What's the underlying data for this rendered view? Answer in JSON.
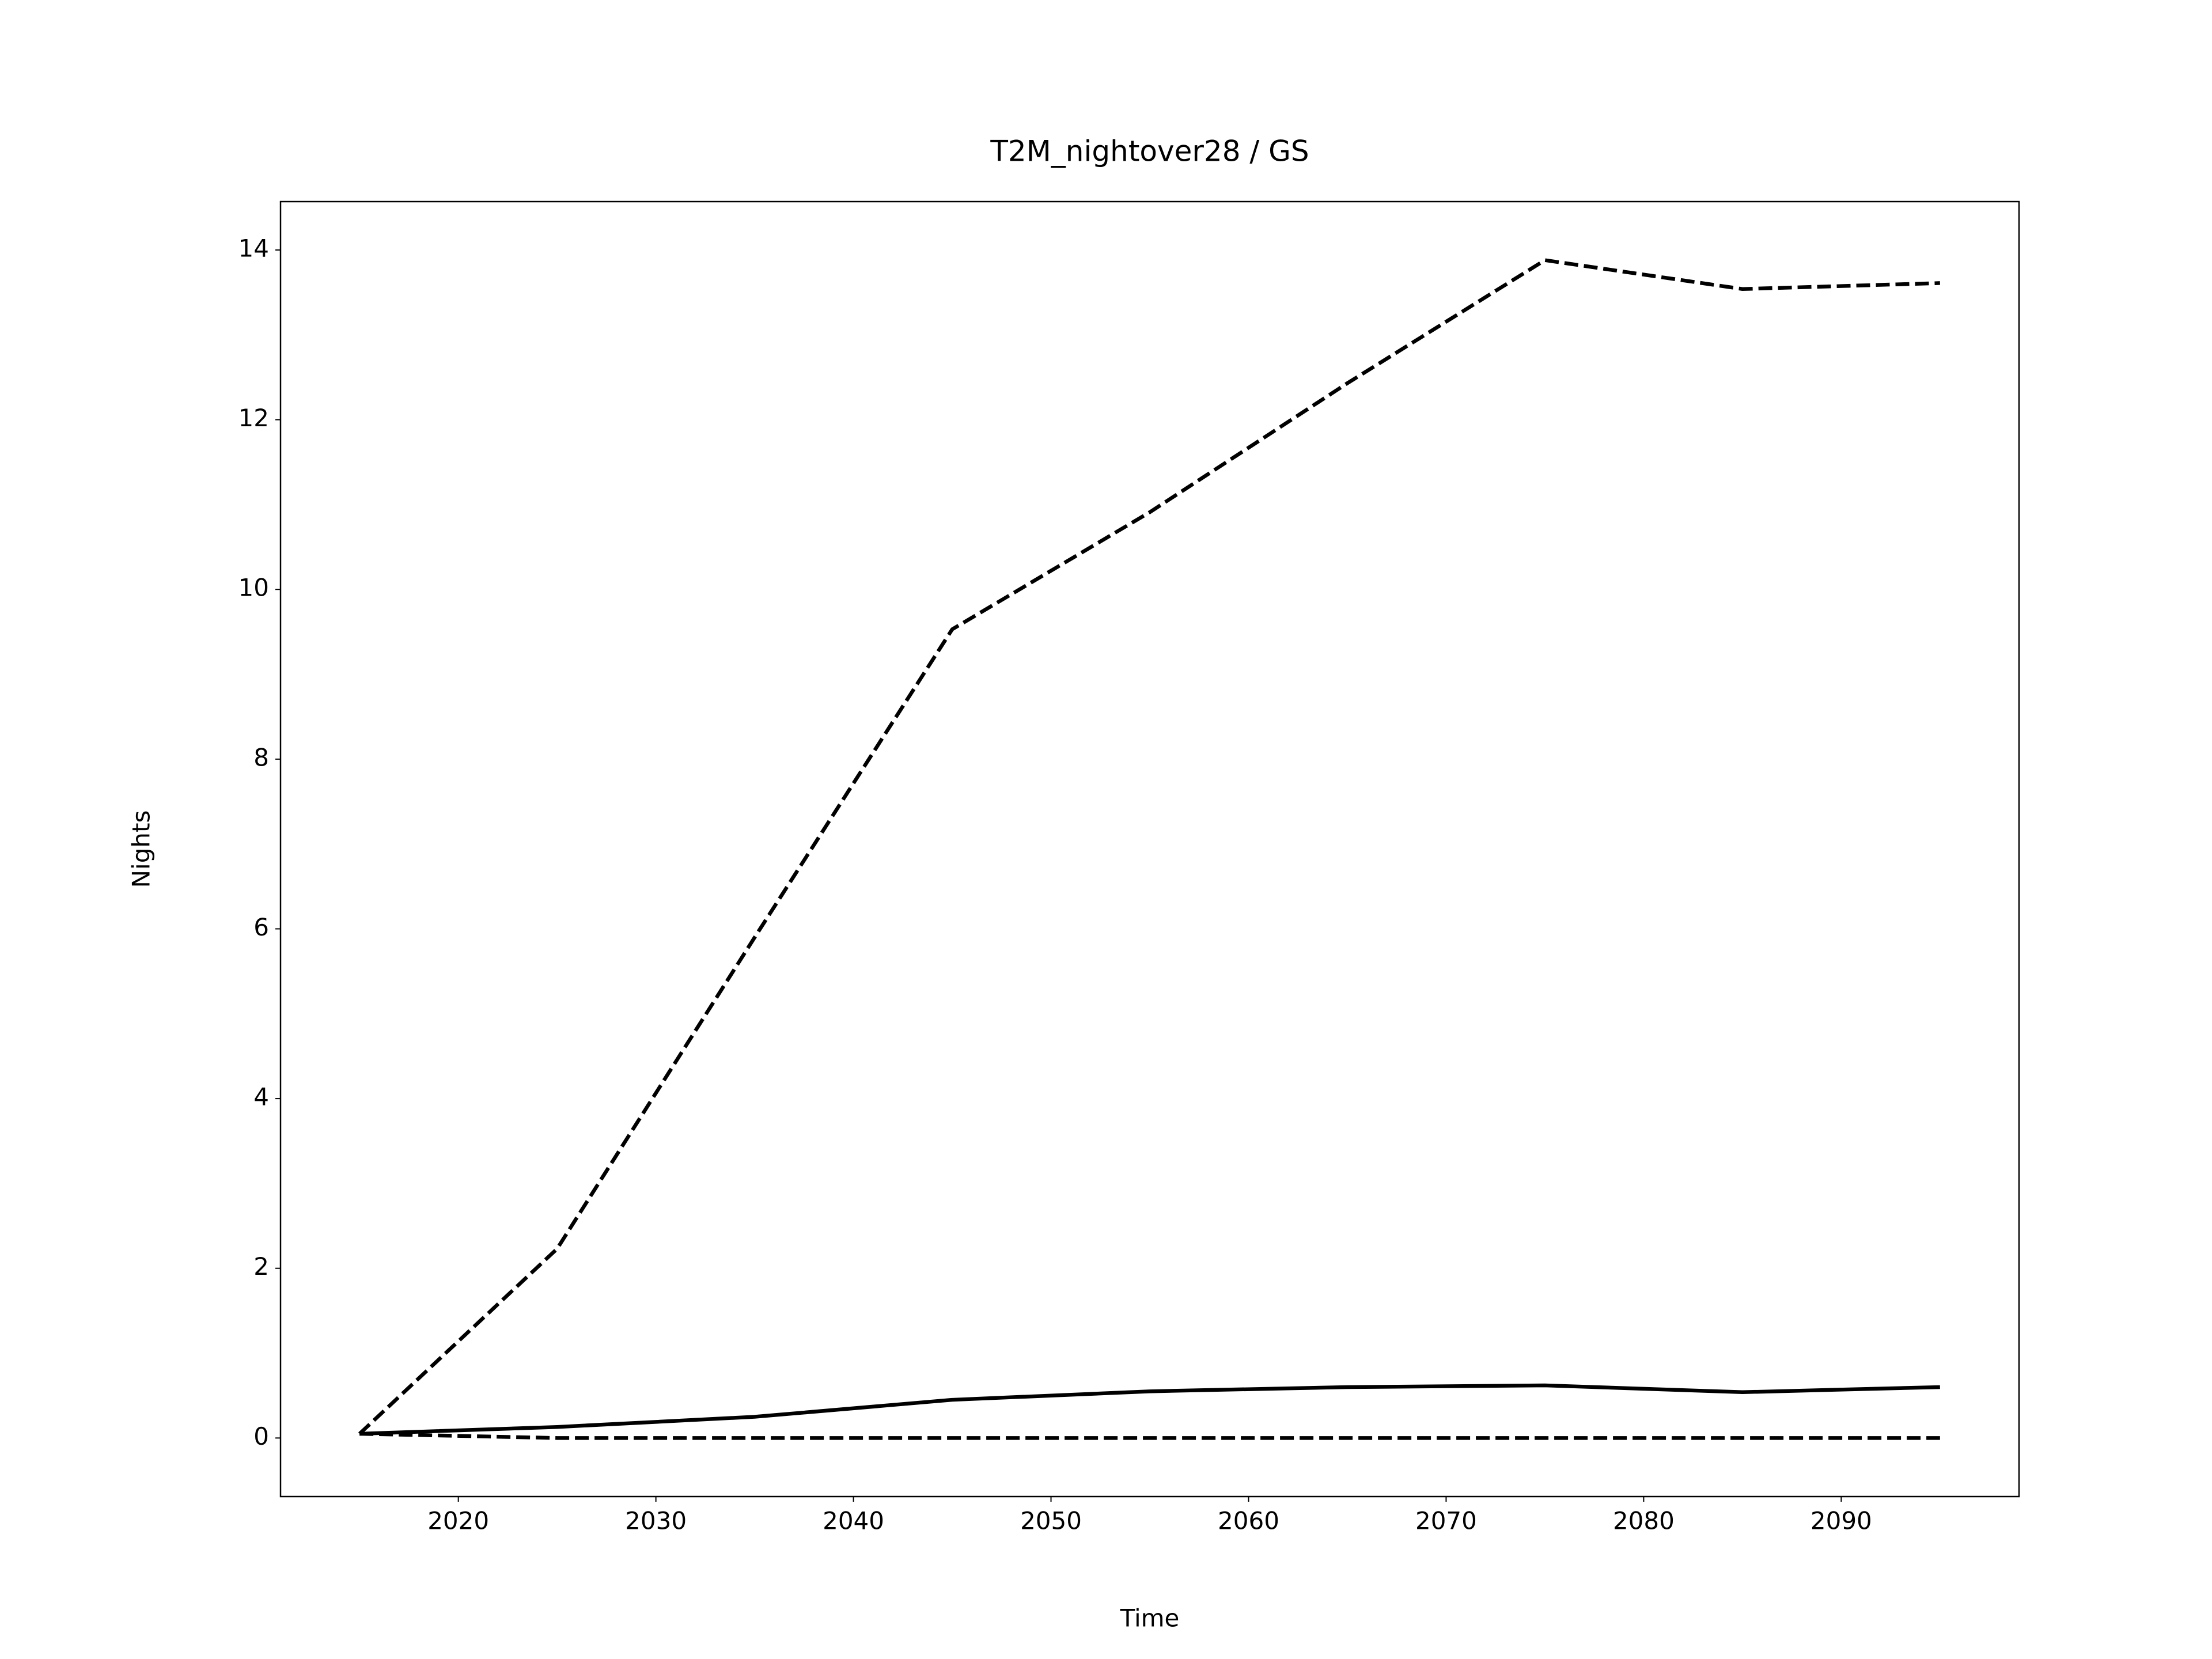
{
  "chart_data": {
    "type": "line",
    "title": "T2M_nightover28 / GS",
    "xlabel": "Time",
    "ylabel": "Nights",
    "x": [
      2015,
      2025,
      2035,
      2045,
      2055,
      2065,
      2075,
      2085,
      2095
    ],
    "series": [
      {
        "color": "#000000",
        "linestyle": "dashed",
        "values": [
          0.05,
          2.23,
          5.9,
          9.53,
          10.91,
          12.43,
          13.88,
          13.54,
          13.61
        ]
      },
      {
        "color": "#000000",
        "linestyle": "solid",
        "values": [
          0.05,
          0.13,
          0.25,
          0.45,
          0.55,
          0.6,
          0.62,
          0.54,
          0.6
        ]
      },
      {
        "color": "#000000",
        "linestyle": "dashed",
        "values": [
          0.05,
          0.0,
          0.0,
          0.0,
          0.0,
          0.0,
          0.0,
          0.0,
          0.0
        ]
      }
    ],
    "xlim": [
      2011,
      2099
    ],
    "ylim": [
      -0.69,
      14.57
    ],
    "xticks": [
      2020,
      2030,
      2040,
      2050,
      2060,
      2070,
      2080,
      2090
    ],
    "yticks": [
      0,
      2,
      4,
      6,
      8,
      10,
      12,
      14
    ],
    "grid": false
  }
}
